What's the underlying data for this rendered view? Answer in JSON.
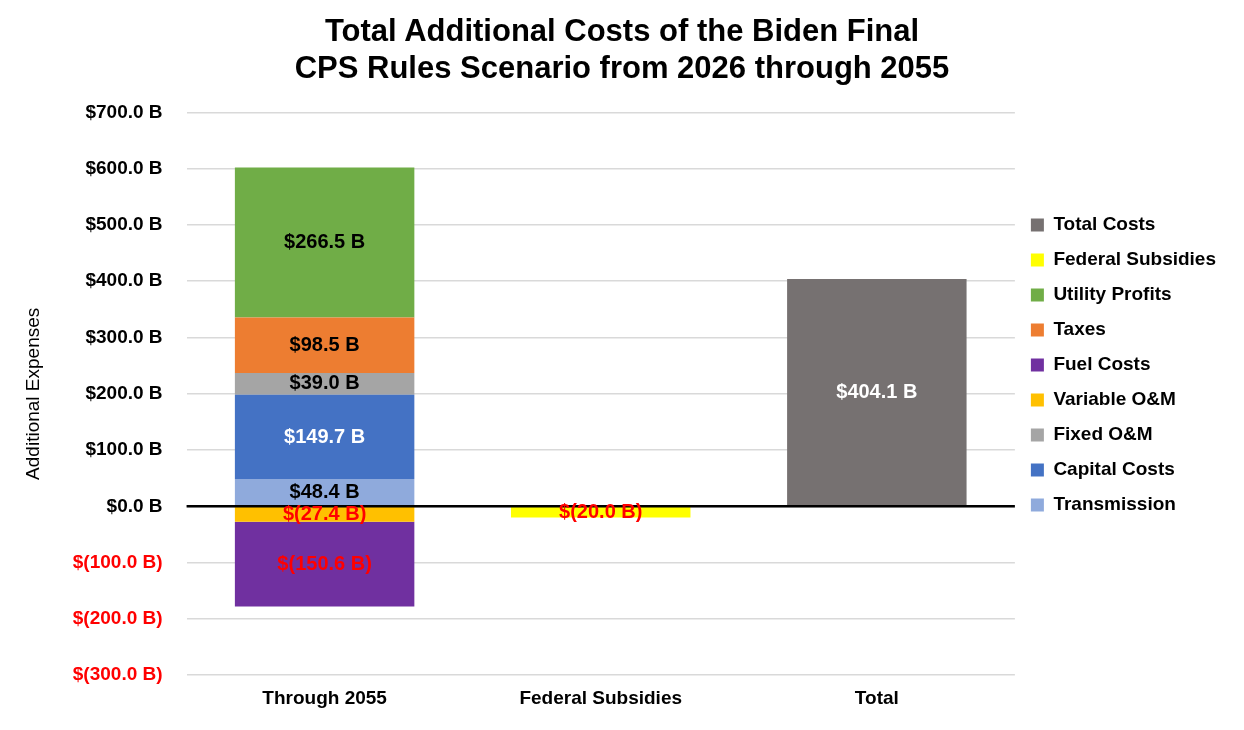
{
  "chart_data": {
    "type": "bar",
    "stacked": true,
    "title": "Total Additional Costs of the Biden Final CPS Rules Scenario from 2026 through 2055",
    "ylabel": "Additional Expenses",
    "categories": [
      "Through 2055",
      "Federal Subsidies",
      "Total"
    ],
    "series": [
      {
        "name": "Transmission",
        "color": "#8faadc",
        "values": [
          48.4,
          null,
          null
        ],
        "value_labels": [
          "$48.4 B",
          null,
          null
        ]
      },
      {
        "name": "Capital Costs",
        "color": "#4472c4",
        "values": [
          149.7,
          null,
          null
        ],
        "value_labels": [
          "$149.7 B",
          null,
          null
        ]
      },
      {
        "name": "Fixed O&M",
        "color": "#a5a5a5",
        "values": [
          39.0,
          null,
          null
        ],
        "value_labels": [
          "$39.0 B",
          null,
          null
        ]
      },
      {
        "name": "Variable O&M",
        "color": "#ffc000",
        "values": [
          -27.4,
          null,
          null
        ],
        "value_labels": [
          "$(27.4 B)",
          null,
          null
        ]
      },
      {
        "name": "Fuel Costs",
        "color": "#7030a0",
        "values": [
          -150.6,
          null,
          null
        ],
        "value_labels": [
          "$(150.6 B)",
          null,
          null
        ]
      },
      {
        "name": "Taxes",
        "color": "#ed7d31",
        "values": [
          98.5,
          null,
          null
        ],
        "value_labels": [
          "$98.5 B",
          null,
          null
        ]
      },
      {
        "name": "Utility Profits",
        "color": "#70ad47",
        "values": [
          266.5,
          null,
          null
        ],
        "value_labels": [
          "$266.5 B",
          null,
          null
        ]
      },
      {
        "name": "Federal Subsidies",
        "color": "#ffff00",
        "values": [
          null,
          -20.0,
          null
        ],
        "value_labels": [
          null,
          "$(20.0 B)",
          null
        ]
      },
      {
        "name": "Total Costs",
        "color": "#767171",
        "values": [
          null,
          null,
          404.1
        ],
        "value_labels": [
          null,
          null,
          "$404.1 B"
        ]
      }
    ],
    "ylim": [
      -300,
      700
    ],
    "yticks": [
      {
        "value": -300,
        "label": "$(300.0 B)"
      },
      {
        "value": -200,
        "label": "$(200.0 B)"
      },
      {
        "value": -100,
        "label": "$(100.0 B)"
      },
      {
        "value": 0,
        "label": "$0.0 B"
      },
      {
        "value": 100,
        "label": "$100.0 B"
      },
      {
        "value": 200,
        "label": "$200.0 B"
      },
      {
        "value": 300,
        "label": "$300.0 B"
      },
      {
        "value": 400,
        "label": "$400.0 B"
      },
      {
        "value": 500,
        "label": "$500.0 B"
      },
      {
        "value": 600,
        "label": "$600.0 B"
      },
      {
        "value": 700,
        "label": "$700.0 B"
      }
    ],
    "ref_lines": [
      {
        "axis": "y",
        "value": 0,
        "color": "#000000"
      }
    ],
    "grid": "y",
    "legend": "right"
  }
}
